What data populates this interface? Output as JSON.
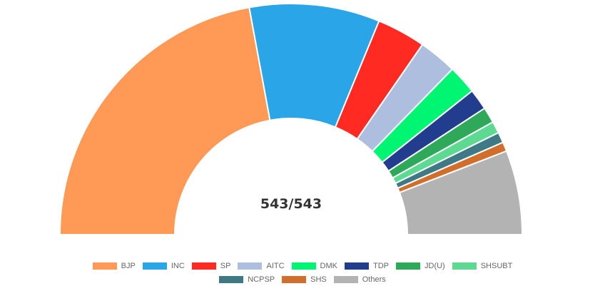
{
  "chart_data": {
    "type": "pie",
    "subtype": "half-doughnut (parliament)",
    "center_label": "543/543",
    "total_seats": 543,
    "categories": [
      "BJP",
      "INC",
      "SP",
      "AITC",
      "DMK",
      "TDP",
      "JD(U)",
      "SHSUBT",
      "NCPSP",
      "SHS",
      "Others"
    ],
    "values": [
      240,
      99,
      37,
      29,
      22,
      16,
      12,
      9,
      8,
      7,
      64
    ],
    "colors": [
      "#FF9955",
      "#2AA5E8",
      "#FF2A22",
      "#AEBEDF",
      "#00F573",
      "#233D8E",
      "#2EA95A",
      "#5DD991",
      "#3E7985",
      "#D16E2C",
      "#B3B3B3"
    ],
    "legend_position": "bottom"
  }
}
